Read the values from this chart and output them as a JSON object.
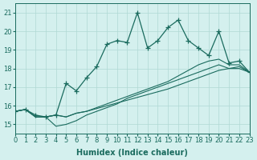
{
  "xlabel": "Humidex (Indice chaleur)",
  "ylabel": "",
  "background_color": "#d4f0ee",
  "grid_color": "#b0d8d4",
  "line_color": "#1a6b5e",
  "xlim": [
    0,
    23
  ],
  "ylim": [
    14.5,
    21.5
  ],
  "yticks": [
    15,
    16,
    17,
    18,
    19,
    20,
    21
  ],
  "xticks": [
    0,
    1,
    2,
    3,
    4,
    5,
    6,
    7,
    8,
    9,
    10,
    11,
    12,
    13,
    14,
    15,
    16,
    17,
    18,
    19,
    20,
    21,
    22,
    23
  ],
  "main_line": [
    15.7,
    15.8,
    15.5,
    15.4,
    15.5,
    17.2,
    16.8,
    17.5,
    18.1,
    19.3,
    19.5,
    19.4,
    21.0,
    19.1,
    19.5,
    20.2,
    20.6,
    19.5,
    19.1,
    18.7,
    20.0,
    18.3,
    18.4,
    17.8
  ],
  "line2": [
    15.7,
    15.8,
    15.4,
    15.4,
    15.5,
    15.4,
    15.6,
    15.7,
    15.85,
    16.0,
    16.15,
    16.3,
    16.45,
    16.6,
    16.75,
    16.9,
    17.1,
    17.3,
    17.5,
    17.7,
    17.9,
    18.0,
    18.1,
    17.8
  ],
  "line3": [
    15.7,
    15.8,
    15.4,
    15.4,
    15.5,
    15.4,
    15.6,
    15.7,
    15.9,
    16.1,
    16.3,
    16.5,
    16.7,
    16.9,
    17.1,
    17.3,
    17.6,
    17.9,
    18.2,
    18.4,
    18.5,
    18.2,
    18.2,
    17.8
  ],
  "line4": [
    15.7,
    15.8,
    15.4,
    15.4,
    14.9,
    15.0,
    15.2,
    15.5,
    15.7,
    15.9,
    16.1,
    16.4,
    16.6,
    16.8,
    17.0,
    17.2,
    17.4,
    17.6,
    17.8,
    18.0,
    18.2,
    18.0,
    18.0,
    17.8
  ]
}
